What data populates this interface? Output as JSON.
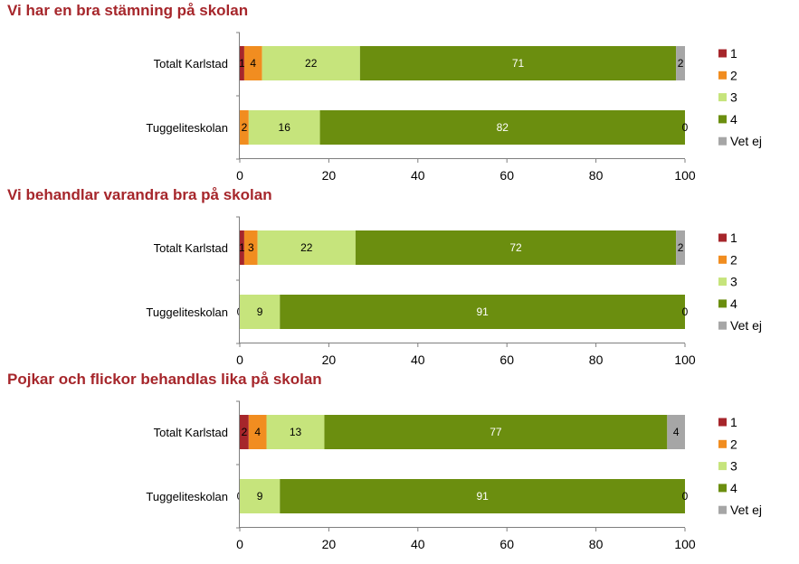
{
  "colors": {
    "title": "#a6262b",
    "1": "#a6262b",
    "2": "#f18d20",
    "3": "#c6e47c",
    "4": "#6b8e0f",
    "Vet ej": "#a6a6a6"
  },
  "chart_data": [
    {
      "type": "bar",
      "orientation": "horizontal-stacked",
      "title": "Vi har en bra stämning på skolan",
      "categories": [
        "Totalt Karlstad",
        "Tuggeliteskolan"
      ],
      "xlim": [
        0,
        100
      ],
      "xticks": [
        "0",
        "20",
        "40",
        "60",
        "80",
        "100"
      ],
      "legend_position": "right",
      "series": [
        {
          "name": "1",
          "values": [
            1,
            0
          ],
          "labels": [
            "1",
            ""
          ]
        },
        {
          "name": "2",
          "values": [
            4,
            2
          ],
          "labels": [
            "4",
            "2"
          ]
        },
        {
          "name": "3",
          "values": [
            22,
            16
          ],
          "labels": [
            "22",
            "16"
          ]
        },
        {
          "name": "4",
          "values": [
            71,
            82
          ],
          "labels": [
            "71",
            "82"
          ]
        },
        {
          "name": "Vet ej",
          "values": [
            2,
            0
          ],
          "labels": [
            "2",
            "0"
          ]
        }
      ]
    },
    {
      "type": "bar",
      "orientation": "horizontal-stacked",
      "title": "Vi behandlar varandra bra på skolan",
      "categories": [
        "Totalt Karlstad",
        "Tuggeliteskolan"
      ],
      "xlim": [
        0,
        100
      ],
      "xticks": [
        "0",
        "20",
        "40",
        "60",
        "80",
        "100"
      ],
      "legend_position": "right",
      "series": [
        {
          "name": "1",
          "values": [
            1,
            0
          ],
          "labels": [
            "1",
            "0"
          ]
        },
        {
          "name": "2",
          "values": [
            3,
            0
          ],
          "labels": [
            "3",
            ""
          ]
        },
        {
          "name": "3",
          "values": [
            22,
            9
          ],
          "labels": [
            "22",
            "9"
          ]
        },
        {
          "name": "4",
          "values": [
            72,
            91
          ],
          "labels": [
            "72",
            "91"
          ]
        },
        {
          "name": "Vet ej",
          "values": [
            2,
            0
          ],
          "labels": [
            "2",
            "0"
          ]
        }
      ]
    },
    {
      "type": "bar",
      "orientation": "horizontal-stacked",
      "title": "Pojkar och flickor behandlas lika på skolan",
      "categories": [
        "Totalt Karlstad",
        "Tuggeliteskolan"
      ],
      "xlim": [
        0,
        100
      ],
      "xticks": [
        "0",
        "20",
        "40",
        "60",
        "80",
        "100"
      ],
      "legend_position": "right",
      "series": [
        {
          "name": "1",
          "values": [
            2,
            0
          ],
          "labels": [
            "2",
            "0"
          ]
        },
        {
          "name": "2",
          "values": [
            4,
            0
          ],
          "labels": [
            "4",
            ""
          ]
        },
        {
          "name": "3",
          "values": [
            13,
            9
          ],
          "labels": [
            "13",
            "9"
          ]
        },
        {
          "name": "4",
          "values": [
            77,
            91
          ],
          "labels": [
            "77",
            "91"
          ]
        },
        {
          "name": "Vet ej",
          "values": [
            4,
            0
          ],
          "labels": [
            "4",
            "0"
          ]
        }
      ]
    }
  ]
}
